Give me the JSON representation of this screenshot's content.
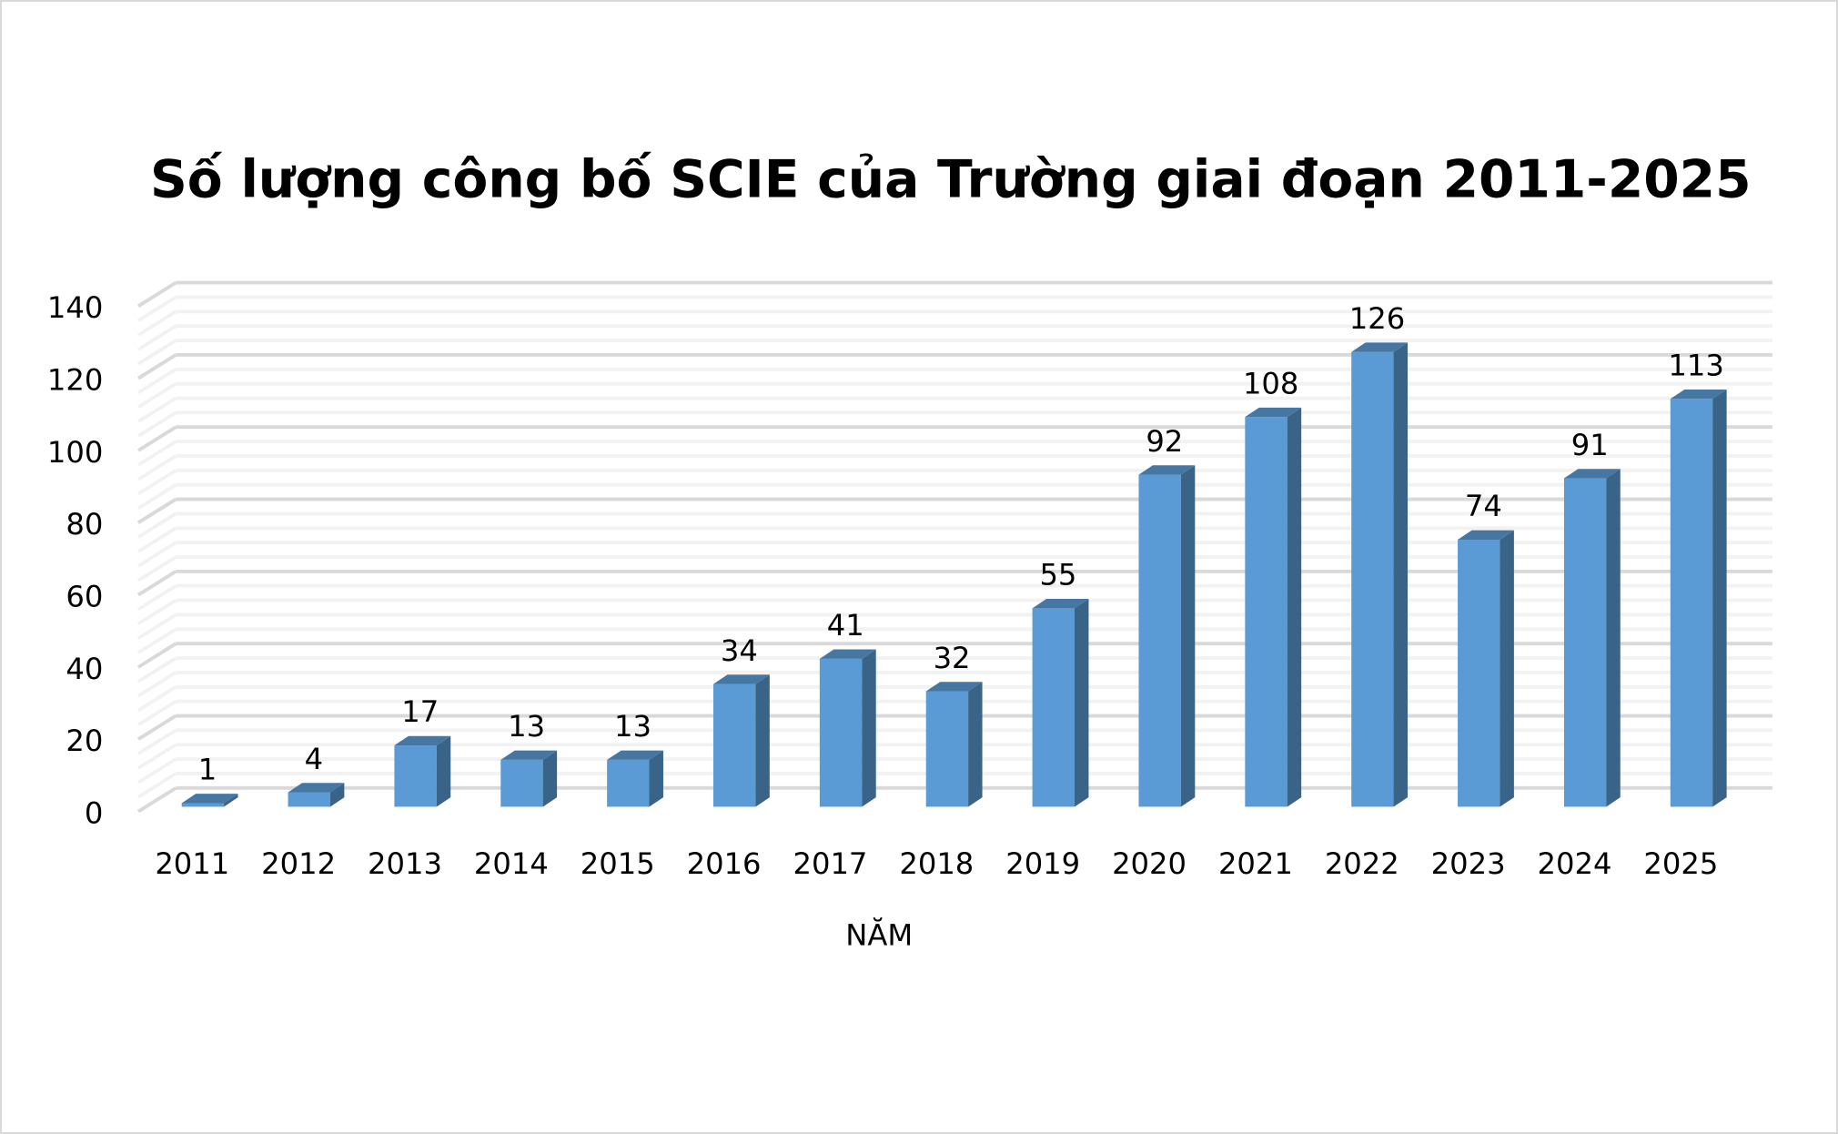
{
  "chart_data": {
    "type": "bar",
    "style": "3d-column",
    "title": "Số lượng công bố SCIE của Trường giai đoạn 2011-2025",
    "xlabel": "NĂM",
    "ylabel": "",
    "ylim": [
      0,
      140
    ],
    "yticks": [
      0,
      20,
      40,
      60,
      80,
      100,
      120,
      140
    ],
    "grid": true,
    "legend": "none",
    "categories": [
      "2011",
      "2012",
      "2013",
      "2014",
      "2015",
      "2016",
      "2017",
      "2018",
      "2019",
      "2020",
      "2021",
      "2022",
      "2023",
      "2024",
      "2025"
    ],
    "values": [
      1,
      4,
      17,
      13,
      13,
      34,
      41,
      32,
      55,
      92,
      108,
      126,
      74,
      91,
      113
    ],
    "colors": {
      "front": "#5B9BD5",
      "side": "#3A6487",
      "top": "#4677A2",
      "grid_major": "#D9D9D9",
      "grid_minor": "#F2F2F2"
    }
  }
}
